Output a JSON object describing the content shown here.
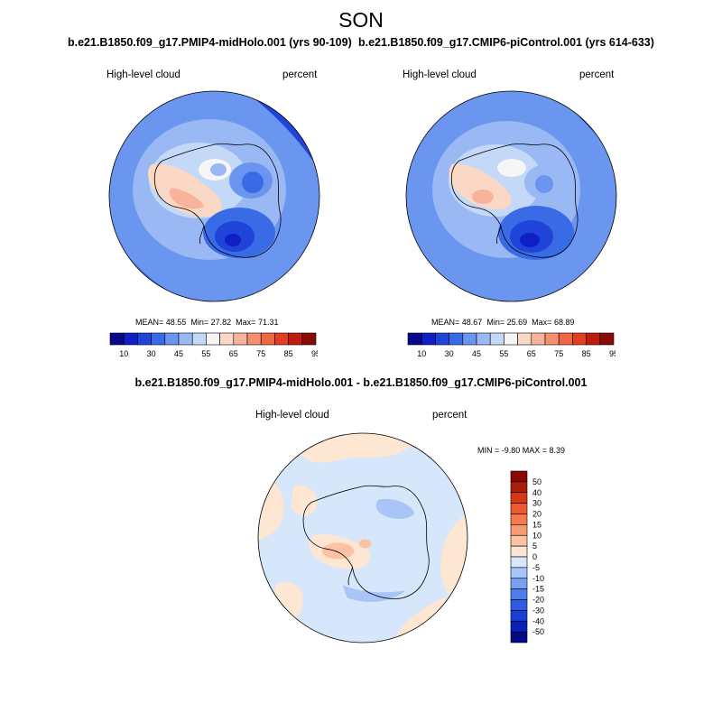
{
  "title": "SON",
  "colors": {
    "seq_scale": [
      "#08088a",
      "#0f1fc4",
      "#1e44d8",
      "#3a6be6",
      "#6a96ef",
      "#9ab9f4",
      "#c4d8f8",
      "#f6f6f6",
      "#fbd7c6",
      "#f8b49a",
      "#f49070",
      "#ef6846",
      "#e23e1f",
      "#bd1d0e",
      "#8a0a05"
    ],
    "diff_scale": [
      "#030a88",
      "#0921b8",
      "#1b3fd4",
      "#2e5ce2",
      "#4d7eea",
      "#79a1f2",
      "#a9c4f7",
      "#d6e6fb",
      "#fde6d2",
      "#fbc3a3",
      "#f99a73",
      "#f57a4b",
      "#ef5b2e",
      "#d43817",
      "#a81e09",
      "#8a0704"
    ]
  },
  "panels": [
    {
      "title": "b.e21.B1850.f09_g17.PMIP4-midHolo.001 (yrs 90-109)",
      "variable": "High-level cloud",
      "units": "percent",
      "stats": {
        "mean_label": "MEAN=",
        "mean": "48.55",
        "min_label": "Min=",
        "min": "27.82",
        "max_label": "Max=",
        "max": "71.31"
      },
      "colorbar_labels": [
        "10",
        "30",
        "45",
        "55",
        "65",
        "75",
        "85",
        "95"
      ]
    },
    {
      "title": "b.e21.B1850.f09_g17.CMIP6-piControl.001 (yrs 614-633)",
      "variable": "High-level cloud",
      "units": "percent",
      "stats": {
        "mean_label": "MEAN=",
        "mean": "48.67",
        "min_label": "Min=",
        "min": "25.69",
        "max_label": "Max=",
        "max": "68.89"
      },
      "colorbar_labels": [
        "10",
        "30",
        "45",
        "55",
        "65",
        "75",
        "85",
        "95"
      ]
    }
  ],
  "difference": {
    "title": "b.e21.B1850.f09_g17.PMIP4-midHolo.001 - b.e21.B1850.f09_g17.CMIP6-piControl.001",
    "variable": "High-level cloud",
    "units": "percent",
    "minmax": "MIN =  -9.80 MAX =   8.39",
    "colorbar_labels": [
      "50",
      "40",
      "30",
      "20",
      "15",
      "10",
      "5",
      "0",
      "-5",
      "-10",
      "-15",
      "-20",
      "-30",
      "-40",
      "-50"
    ]
  }
}
